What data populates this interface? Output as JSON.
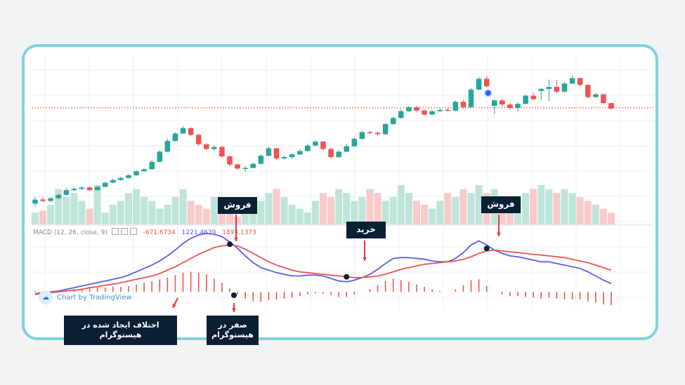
{
  "macd_legend": {
    "label": "MACD (12, 26, close, 9)",
    "value1": "-671.6734",
    "value2": "1221.4639",
    "value3": "1893.1373"
  },
  "watermark": "Chart by TradingView",
  "callouts": {
    "sell1": "فروش",
    "buy": "خرید",
    "sell2": "فروش",
    "divergence": "اختلاف ایجاد شده در هیستوگرام",
    "zero": "صفر در هیستوگرام"
  },
  "colors": {
    "up": "#26a69a",
    "down": "#ef5350",
    "macd_line": "#5b5bef",
    "signal_line": "#ef5350",
    "frame": "#7fd3dc",
    "callout_bg": "#0b1f35"
  },
  "chart_data": [
    {
      "type": "candlestick",
      "candles": [
        {
          "o": 100,
          "h": 101,
          "l": 99.5,
          "c": 100.6
        },
        {
          "o": 100.6,
          "h": 101,
          "l": 100.2,
          "c": 100.4
        },
        {
          "o": 100.4,
          "h": 101,
          "l": 100.2,
          "c": 100.8
        },
        {
          "o": 100.8,
          "h": 101.5,
          "l": 100.6,
          "c": 101.3
        },
        {
          "o": 101.3,
          "h": 102.3,
          "l": 101.2,
          "c": 102
        },
        {
          "o": 102,
          "h": 102.4,
          "l": 101.8,
          "c": 102.2
        },
        {
          "o": 102.2,
          "h": 102.6,
          "l": 102,
          "c": 102.4
        },
        {
          "o": 102.4,
          "h": 102.6,
          "l": 101.9,
          "c": 102
        },
        {
          "o": 102,
          "h": 102.6,
          "l": 101.9,
          "c": 102.5
        },
        {
          "o": 102.5,
          "h": 103.3,
          "l": 102.4,
          "c": 103.1
        },
        {
          "o": 103.1,
          "h": 103.7,
          "l": 103,
          "c": 103.5
        },
        {
          "o": 103.5,
          "h": 104,
          "l": 103.4,
          "c": 103.8
        },
        {
          "o": 103.8,
          "h": 104.4,
          "l": 103.7,
          "c": 104.2
        },
        {
          "o": 104.2,
          "h": 105,
          "l": 104.1,
          "c": 104.8
        },
        {
          "o": 104.8,
          "h": 105.3,
          "l": 104.7,
          "c": 105.1
        },
        {
          "o": 105.1,
          "h": 106.5,
          "l": 105,
          "c": 106.2
        },
        {
          "o": 106.2,
          "h": 107.9,
          "l": 106.1,
          "c": 107.7
        },
        {
          "o": 107.7,
          "h": 109.6,
          "l": 107.6,
          "c": 109.3
        },
        {
          "o": 109.3,
          "h": 110.6,
          "l": 109.2,
          "c": 110.4
        },
        {
          "o": 110.4,
          "h": 111.5,
          "l": 110.3,
          "c": 111.2
        },
        {
          "o": 111.2,
          "h": 111.3,
          "l": 110,
          "c": 110.2
        },
        {
          "o": 110.2,
          "h": 110.4,
          "l": 108.5,
          "c": 108.8
        },
        {
          "o": 108.8,
          "h": 109,
          "l": 107.9,
          "c": 108.1
        },
        {
          "o": 108.1,
          "h": 108.7,
          "l": 107.9,
          "c": 108.4
        },
        {
          "o": 108.4,
          "h": 108.6,
          "l": 106.8,
          "c": 107
        },
        {
          "o": 107,
          "h": 107.2,
          "l": 105.5,
          "c": 105.8
        },
        {
          "o": 105.8,
          "h": 106,
          "l": 105,
          "c": 105.2
        },
        {
          "o": 105.2,
          "h": 105.6,
          "l": 104.7,
          "c": 105.3
        },
        {
          "o": 105.3,
          "h": 106.1,
          "l": 105.2,
          "c": 105.9
        },
        {
          "o": 105.9,
          "h": 107.3,
          "l": 105.8,
          "c": 107.1
        },
        {
          "o": 107.1,
          "h": 108.5,
          "l": 107,
          "c": 108.2
        },
        {
          "o": 108.2,
          "h": 108.3,
          "l": 106.5,
          "c": 106.7
        },
        {
          "o": 106.7,
          "h": 107.1,
          "l": 106.5,
          "c": 106.9
        },
        {
          "o": 106.9,
          "h": 107.5,
          "l": 106.6,
          "c": 107.3
        },
        {
          "o": 107.3,
          "h": 108.1,
          "l": 107.2,
          "c": 107.8
        },
        {
          "o": 107.8,
          "h": 108.9,
          "l": 107.7,
          "c": 108.6
        },
        {
          "o": 108.6,
          "h": 109.4,
          "l": 108.5,
          "c": 109.2
        },
        {
          "o": 109.2,
          "h": 109.3,
          "l": 107.9,
          "c": 108.1
        },
        {
          "o": 108.1,
          "h": 108.3,
          "l": 106.7,
          "c": 106.9
        },
        {
          "o": 106.9,
          "h": 108,
          "l": 106.8,
          "c": 107.7
        },
        {
          "o": 107.7,
          "h": 108.8,
          "l": 107.6,
          "c": 108.5
        },
        {
          "o": 108.5,
          "h": 109.8,
          "l": 108.4,
          "c": 109.6
        },
        {
          "o": 109.6,
          "h": 110.8,
          "l": 109.5,
          "c": 110.6
        },
        {
          "o": 110.6,
          "h": 110.8,
          "l": 110.3,
          "c": 110.5
        },
        {
          "o": 110.5,
          "h": 110.7,
          "l": 110.1,
          "c": 110.3
        },
        {
          "o": 110.3,
          "h": 112,
          "l": 110.2,
          "c": 111.8
        },
        {
          "o": 111.8,
          "h": 112.9,
          "l": 111.7,
          "c": 112.7
        },
        {
          "o": 112.7,
          "h": 114,
          "l": 112.6,
          "c": 113.7
        },
        {
          "o": 113.7,
          "h": 114.5,
          "l": 113.6,
          "c": 114.3
        },
        {
          "o": 114.3,
          "h": 114.5,
          "l": 113.5,
          "c": 113.8
        },
        {
          "o": 113.8,
          "h": 114,
          "l": 113,
          "c": 113.2
        },
        {
          "o": 113.2,
          "h": 113.9,
          "l": 113.1,
          "c": 113.7
        },
        {
          "o": 113.7,
          "h": 114.1,
          "l": 113.6,
          "c": 113.9
        },
        {
          "o": 113.9,
          "h": 114.1,
          "l": 113.7,
          "c": 113.8
        },
        {
          "o": 113.8,
          "h": 115.3,
          "l": 113.7,
          "c": 115.1
        },
        {
          "o": 115.1,
          "h": 115.4,
          "l": 114.1,
          "c": 114.3
        },
        {
          "o": 114.3,
          "h": 117.2,
          "l": 114.2,
          "c": 116.9
        },
        {
          "o": 116.9,
          "h": 118.8,
          "l": 116.8,
          "c": 118.5
        },
        {
          "o": 118.5,
          "h": 118.9,
          "l": 117.2,
          "c": 117.4
        },
        {
          "o": 114.5,
          "h": 115.5,
          "l": 113.3,
          "c": 115.3
        },
        {
          "o": 115.3,
          "h": 115.6,
          "l": 114.4,
          "c": 114.7
        },
        {
          "o": 114.7,
          "h": 114.9,
          "l": 113.9,
          "c": 114.2
        },
        {
          "o": 114.2,
          "h": 115,
          "l": 113.6,
          "c": 114.8
        },
        {
          "o": 114.8,
          "h": 116.2,
          "l": 114.7,
          "c": 116
        },
        {
          "o": 116,
          "h": 116.5,
          "l": 115.3,
          "c": 115.5
        },
        {
          "o": 116.7,
          "h": 117.2,
          "l": 115.4,
          "c": 117
        },
        {
          "o": 117,
          "h": 118.4,
          "l": 115.2,
          "c": 117.3
        },
        {
          "o": 117.3,
          "h": 118.3,
          "l": 116.3,
          "c": 116.6
        },
        {
          "o": 116.6,
          "h": 118.1,
          "l": 116.5,
          "c": 117.8
        },
        {
          "o": 117.8,
          "h": 119,
          "l": 117.7,
          "c": 118.6
        },
        {
          "o": 118.6,
          "h": 118.7,
          "l": 117.4,
          "c": 117.6
        },
        {
          "o": 117.6,
          "h": 117.8,
          "l": 115.6,
          "c": 115.8
        },
        {
          "o": 115.8,
          "h": 116.4,
          "l": 115.7,
          "c": 116.2
        },
        {
          "o": 116.2,
          "h": 116.3,
          "l": 114.7,
          "c": 114.9
        },
        {
          "o": 114.9,
          "h": 115,
          "l": 113.9,
          "c": 114.1
        }
      ],
      "volume": [
        3,
        3.5,
        5,
        9,
        7,
        8,
        6,
        4,
        10,
        3,
        5,
        6,
        8,
        9,
        7,
        6,
        4,
        5,
        7,
        9,
        6,
        5,
        4,
        7,
        4,
        3,
        2,
        3,
        5,
        6,
        8,
        9,
        7,
        5,
        4,
        3,
        6,
        8,
        7,
        9,
        8,
        6,
        7,
        9,
        8,
        6,
        7,
        10,
        8,
        6,
        5,
        4,
        6,
        8,
        7,
        9,
        8,
        10,
        8,
        9,
        5,
        6,
        7,
        8,
        9,
        10,
        9,
        8,
        9,
        8,
        7,
        6,
        5,
        4,
        3
      ],
      "reference_line": 114.2
    },
    {
      "type": "line",
      "series": [
        {
          "name": "MACD",
          "values": [
            -0.2,
            -0.1,
            0.0,
            0.1,
            0.3,
            0.5,
            0.7,
            0.9,
            1.1,
            1.3,
            1.5,
            1.7,
            2.0,
            2.4,
            2.8,
            3.2,
            3.7,
            4.3,
            5.0,
            5.8,
            6.4,
            6.8,
            7.0,
            6.9,
            6.6,
            6.0,
            5.2,
            4.3,
            3.5,
            2.9,
            2.6,
            2.3,
            2.1,
            1.9,
            1.9,
            2.0,
            2.0,
            1.9,
            1.6,
            1.3,
            1.2,
            1.4,
            1.7,
            2.1,
            2.7,
            3.4,
            4.0,
            4.1,
            4.1,
            4.0,
            3.9,
            3.7,
            3.6,
            3.6,
            4.0,
            4.7,
            5.6,
            6.1,
            5.6,
            5.0,
            4.6,
            4.3,
            4.2,
            4.0,
            3.8,
            3.6,
            3.6,
            3.4,
            3.2,
            3.0,
            2.8,
            2.4,
            1.9,
            1.4,
            1.0
          ]
        },
        {
          "name": "Signal",
          "values": [
            -0.3,
            -0.2,
            -0.1,
            0.0,
            0.1,
            0.2,
            0.3,
            0.5,
            0.6,
            0.8,
            0.9,
            1.1,
            1.3,
            1.5,
            1.7,
            1.9,
            2.2,
            2.6,
            3.0,
            3.5,
            4.0,
            4.5,
            4.9,
            5.3,
            5.5,
            5.6,
            5.5,
            5.1,
            4.6,
            4.1,
            3.6,
            3.2,
            2.9,
            2.6,
            2.4,
            2.3,
            2.2,
            2.1,
            2.0,
            1.9,
            1.8,
            1.7,
            1.7,
            1.8,
            1.9,
            2.1,
            2.4,
            2.7,
            2.9,
            3.1,
            3.3,
            3.4,
            3.5,
            3.6,
            3.7,
            3.9,
            4.2,
            4.6,
            4.9,
            5.0,
            4.9,
            4.8,
            4.7,
            4.6,
            4.5,
            4.4,
            4.3,
            4.2,
            4.1,
            3.9,
            3.7,
            3.5,
            3.2,
            2.9,
            2.6
          ]
        }
      ],
      "histogram": [
        0.1,
        0.1,
        0.1,
        0.1,
        0.2,
        0.3,
        0.4,
        0.4,
        0.5,
        0.5,
        0.6,
        0.6,
        0.7,
        0.9,
        1.1,
        1.3,
        1.5,
        1.7,
        2.0,
        2.3,
        2.4,
        2.3,
        2.1,
        1.6,
        1.1,
        0.4,
        -0.3,
        -0.8,
        -1.1,
        -1.2,
        -1.0,
        -0.9,
        -0.8,
        -0.7,
        -0.5,
        -0.3,
        -0.2,
        -0.2,
        -0.4,
        -0.6,
        -0.6,
        -0.3,
        0.0,
        0.3,
        0.8,
        1.3,
        1.6,
        1.4,
        1.2,
        0.9,
        0.6,
        0.3,
        0.1,
        0.0,
        0.3,
        0.8,
        1.4,
        1.5,
        0.7,
        0.0,
        -0.3,
        -0.5,
        -0.5,
        -0.6,
        -0.7,
        -0.8,
        -0.7,
        -0.8,
        -0.9,
        -0.9,
        -0.9,
        -1.1,
        -1.3,
        -1.5,
        -1.6
      ]
    }
  ]
}
